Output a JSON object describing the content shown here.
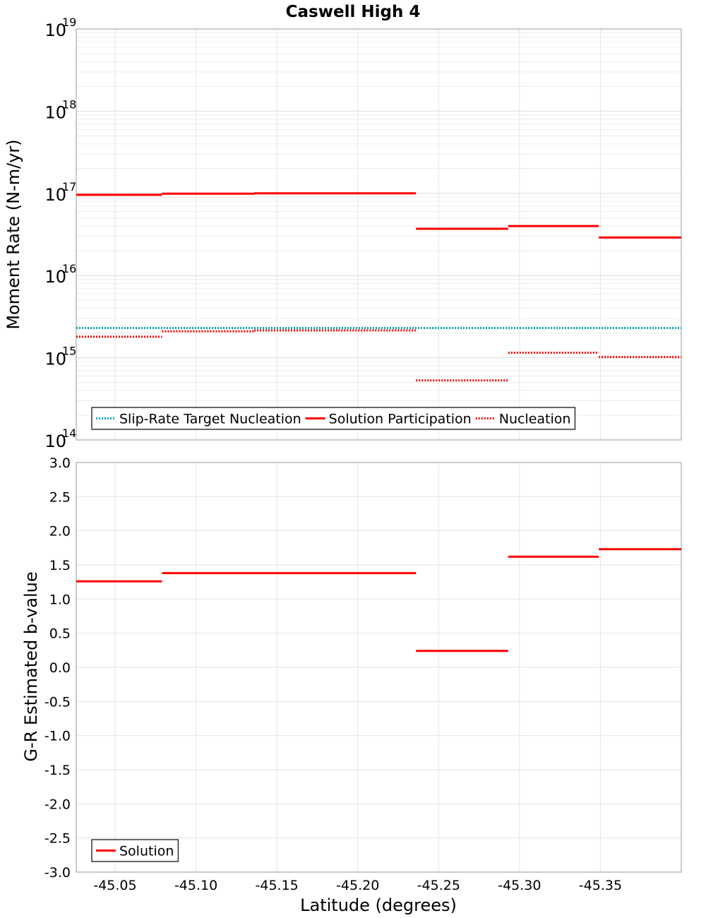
{
  "title": "Caswell High 4",
  "chart_data": [
    {
      "type": "line",
      "panel": "top",
      "ylabel": "Moment Rate (N-m/yr)",
      "y_scale": "log",
      "ylim": [
        100000000000000.0,
        1e+19
      ],
      "y_tick_exponents": [
        "14",
        "15",
        "16",
        "17",
        "18",
        "19"
      ],
      "y_tick_base": "10",
      "legend": {
        "placement": "bottom-left",
        "entries": [
          "Slip-Rate Target Nucleation",
          "Solution Participation",
          "Nucleation"
        ]
      },
      "series": [
        {
          "name": "Slip-Rate Target Nucleation",
          "color": "#00a6b0",
          "style": "dotted",
          "segments": [
            {
              "x0": -45.026,
              "x1": -45.4,
              "y": 2300000000000000.0
            }
          ]
        },
        {
          "name": "Solution Participation",
          "color": "#ff0000",
          "style": "solid",
          "segments": [
            {
              "x0": -45.026,
              "x1": -45.079,
              "y": 9.6e+16
            },
            {
              "x0": -45.079,
              "x1": -45.136,
              "y": 9.9e+16
            },
            {
              "x0": -45.136,
              "x1": -45.188,
              "y": 1e+17
            },
            {
              "x0": -45.188,
              "x1": -45.236,
              "y": 1e+17
            },
            {
              "x0": -45.236,
              "x1": -45.293,
              "y": 3.7e+16
            },
            {
              "x0": -45.293,
              "x1": -45.349,
              "y": 4e+16
            },
            {
              "x0": -45.349,
              "x1": -45.4,
              "y": 2.9e+16
            }
          ]
        },
        {
          "name": "Nucleation",
          "color": "#ff0000",
          "style": "dotted",
          "segments": [
            {
              "x0": -45.026,
              "x1": -45.079,
              "y": 1800000000000000.0
            },
            {
              "x0": -45.079,
              "x1": -45.136,
              "y": 2100000000000000.0
            },
            {
              "x0": -45.136,
              "x1": -45.188,
              "y": 2150000000000000.0
            },
            {
              "x0": -45.188,
              "x1": -45.236,
              "y": 2150000000000000.0
            },
            {
              "x0": -45.236,
              "x1": -45.293,
              "y": 530000000000000.0
            },
            {
              "x0": -45.293,
              "x1": -45.349,
              "y": 1150000000000000.0
            },
            {
              "x0": -45.349,
              "x1": -45.4,
              "y": 1020000000000000.0
            }
          ]
        }
      ]
    },
    {
      "type": "line",
      "panel": "bottom",
      "xlabel": "Latitude (degrees)",
      "ylabel": "G-R Estimated b-value",
      "xlim": [
        -45.026,
        -45.4
      ],
      "ylim": [
        -3.0,
        3.0
      ],
      "x_ticks": [
        "-45.05",
        "-45.10",
        "-45.15",
        "-45.20",
        "-45.25",
        "-45.30",
        "-45.35"
      ],
      "y_ticks": [
        "3.0",
        "2.5",
        "2.0",
        "1.5",
        "1.0",
        "0.5",
        "0.0",
        "-0.5",
        "-1.0",
        "-1.5",
        "-2.0",
        "-2.5",
        "-3.0"
      ],
      "legend": {
        "placement": "bottom-left",
        "entries": [
          "Solution"
        ]
      },
      "series": [
        {
          "name": "Solution",
          "color": "#ff0000",
          "style": "solid",
          "segments": [
            {
              "x0": -45.026,
              "x1": -45.079,
              "y": 1.26
            },
            {
              "x0": -45.079,
              "x1": -45.136,
              "y": 1.38
            },
            {
              "x0": -45.136,
              "x1": -45.188,
              "y": 1.38
            },
            {
              "x0": -45.188,
              "x1": -45.236,
              "y": 1.38
            },
            {
              "x0": -45.236,
              "x1": -45.293,
              "y": 0.24
            },
            {
              "x0": -45.293,
              "x1": -45.349,
              "y": 1.62
            },
            {
              "x0": -45.349,
              "x1": -45.4,
              "y": 1.73
            }
          ]
        }
      ]
    }
  ]
}
